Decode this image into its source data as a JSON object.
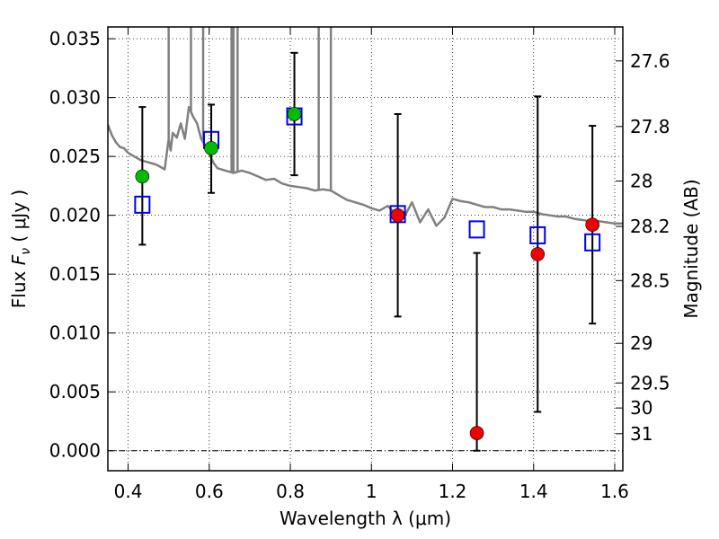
{
  "chart_data": {
    "type": "scatter",
    "xlabel": "Wavelength  λ (μm)",
    "ylabel": "Flux  F_ν  ( μJy )",
    "ylabel_parts": {
      "prefix": "Flux  ",
      "var": "F",
      "sub": "ν",
      "suffix": "  ( μJy )"
    },
    "y2label": "Magnitude (AB)",
    "xlim": [
      0.35,
      1.62
    ],
    "ylim": [
      -0.0017,
      0.036
    ],
    "grid": true,
    "xticks": [
      0.4,
      0.6,
      0.8,
      1.0,
      1.2,
      1.4,
      1.6
    ],
    "xtick_labels": [
      "0.4",
      "0.6",
      "0.8",
      "1",
      "1.2",
      "1.4",
      "1.6"
    ],
    "yticks": [
      0.0,
      0.005,
      0.01,
      0.015,
      0.02,
      0.025,
      0.03,
      0.035
    ],
    "ytick_labels": [
      "0.000",
      "0.005",
      "0.010",
      "0.015",
      "0.020",
      "0.025",
      "0.030",
      "0.035"
    ],
    "y2ticks": [
      27.6,
      27.8,
      28,
      28.2,
      28.5,
      29,
      29.5,
      30,
      31
    ],
    "y2tick_labels": [
      "27.6",
      "27.8",
      "28",
      "28.2",
      "28.5",
      "29",
      "29.5",
      "30",
      "31"
    ],
    "series": [
      {
        "kind": "line",
        "color": "#808080",
        "x": [
          0.35,
          0.36,
          0.37,
          0.38,
          0.39,
          0.4,
          0.41,
          0.42,
          0.43,
          0.44,
          0.45,
          0.46,
          0.47,
          0.48,
          0.49,
          0.5,
          0.505,
          0.51,
          0.52,
          0.53,
          0.54,
          0.55,
          0.56,
          0.57,
          0.58,
          0.59,
          0.6,
          0.61,
          0.62,
          0.64,
          0.66,
          0.68,
          0.7,
          0.72,
          0.74,
          0.76,
          0.78,
          0.8,
          0.82,
          0.84,
          0.86,
          0.88,
          0.9,
          0.92,
          0.94,
          0.96,
          0.98,
          1.0,
          1.02,
          1.04,
          1.06,
          1.08,
          1.1,
          1.12,
          1.14,
          1.16,
          1.18,
          1.2,
          1.22,
          1.24,
          1.26,
          1.28,
          1.3,
          1.32,
          1.34,
          1.36,
          1.38,
          1.4,
          1.42,
          1.44,
          1.46,
          1.48,
          1.5,
          1.52,
          1.54,
          1.56,
          1.58,
          1.6,
          1.62
        ],
        "y": [
          0.0277,
          0.0268,
          0.0262,
          0.0258,
          0.0257,
          0.0253,
          0.0251,
          0.0249,
          0.0247,
          0.0246,
          0.0245,
          0.0244,
          0.0243,
          0.0241,
          0.0239,
          0.0265,
          0.0255,
          0.027,
          0.0266,
          0.0278,
          0.0265,
          0.0292,
          0.0284,
          0.0278,
          0.0265,
          0.0259,
          0.0252,
          0.0245,
          0.024,
          0.0238,
          0.0236,
          0.0238,
          0.0236,
          0.0233,
          0.023,
          0.0231,
          0.0227,
          0.0225,
          0.0224,
          0.0223,
          0.0221,
          0.0222,
          0.0221,
          0.0217,
          0.0213,
          0.0211,
          0.0209,
          0.0206,
          0.0204,
          0.0208,
          0.0201,
          0.0198,
          0.0211,
          0.0194,
          0.0205,
          0.0191,
          0.0198,
          0.0214,
          0.0212,
          0.0211,
          0.0209,
          0.0207,
          0.0207,
          0.0205,
          0.0205,
          0.0204,
          0.0203,
          0.0203,
          0.0201,
          0.02,
          0.0199,
          0.0199,
          0.0197,
          0.0196,
          0.0195,
          0.0195,
          0.0194,
          0.0193,
          0.0193
        ],
        "spikes": [
          {
            "x": 0.5,
            "top": 0.036
          },
          {
            "x": 0.555,
            "top": 0.036
          },
          {
            "x": 0.585,
            "top": 0.036
          },
          {
            "x": 0.655,
            "top": 0.036
          },
          {
            "x": 0.66,
            "top": 0.036
          },
          {
            "x": 0.67,
            "top": 0.036
          },
          {
            "x": 0.87,
            "top": 0.036
          },
          {
            "x": 0.9,
            "top": 0.036
          }
        ]
      },
      {
        "kind": "points",
        "marker": "open-square",
        "color": "#0000ee",
        "x": [
          0.435,
          0.605,
          0.81,
          1.065,
          1.26,
          1.41,
          1.545
        ],
        "y": [
          0.0209,
          0.0264,
          0.0284,
          0.0201,
          0.0188,
          0.0183,
          0.0177
        ]
      },
      {
        "kind": "points",
        "marker": "filled-circle",
        "color": "#00bb00",
        "x": [
          0.435,
          0.605,
          0.81
        ],
        "y": [
          0.0233,
          0.0257,
          0.0286
        ]
      },
      {
        "kind": "points",
        "marker": "filled-circle",
        "color": "#ee0000",
        "x": [
          1.065,
          1.26,
          1.41,
          1.545
        ],
        "y": [
          0.02,
          0.0015,
          0.0167,
          0.0192
        ]
      },
      {
        "kind": "errorbars",
        "color": "#000000",
        "x": [
          0.435,
          0.605,
          0.81,
          1.065,
          1.26,
          1.41,
          1.545
        ],
        "low": [
          0.0175,
          0.0219,
          0.0234,
          0.0114,
          0.0,
          0.0033,
          0.0108
        ],
        "high": [
          0.0292,
          0.0294,
          0.0338,
          0.0286,
          0.0168,
          0.0301,
          0.0276
        ]
      }
    ]
  }
}
